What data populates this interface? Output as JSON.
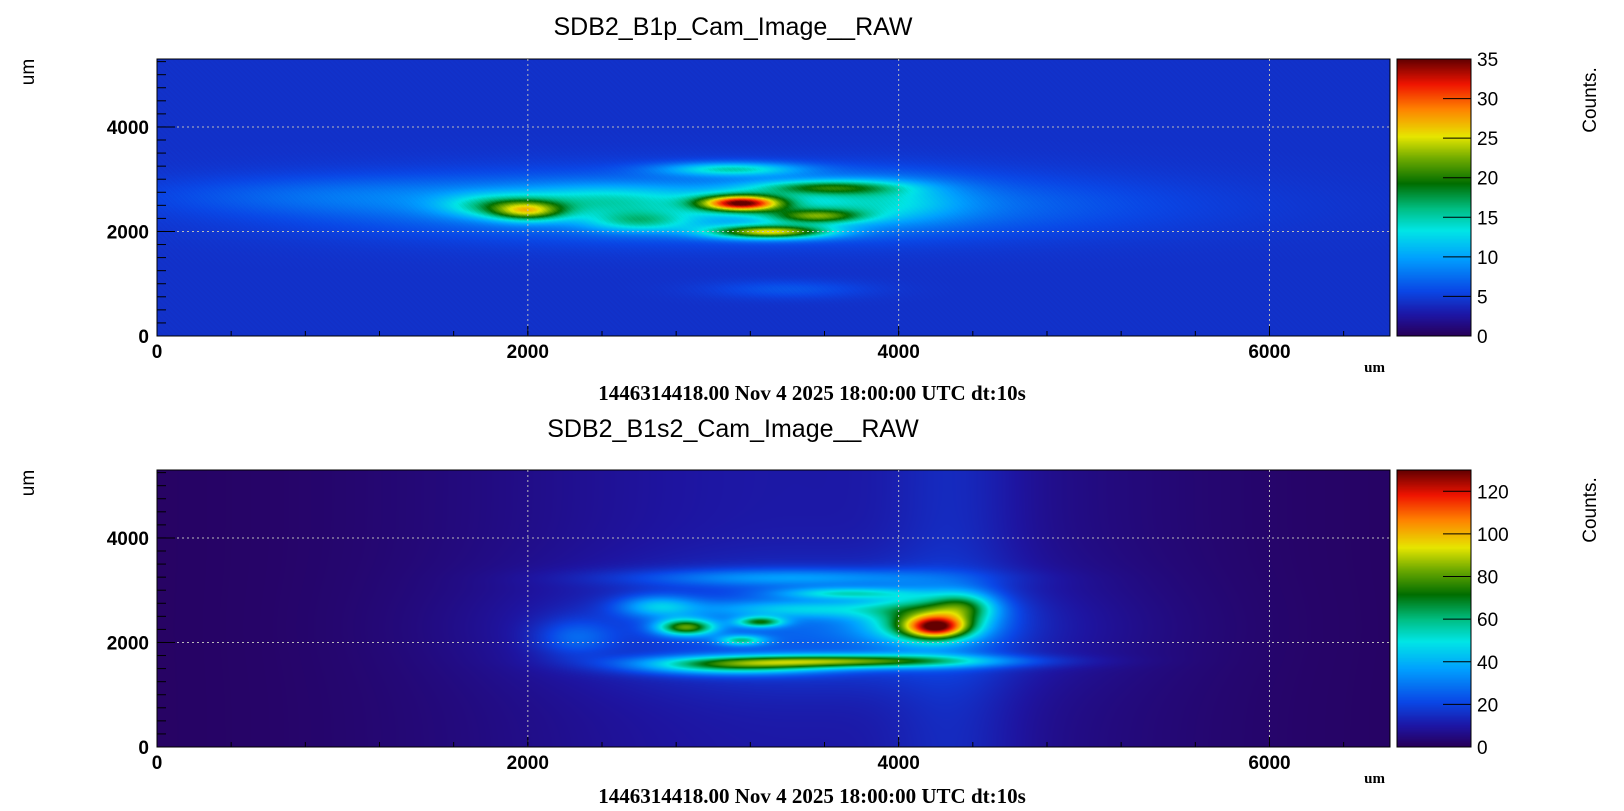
{
  "chart_data": [
    {
      "type": "heatmap",
      "title": "SDB2_B1p_Cam_Image__RAW",
      "xlabel": "um",
      "ylabel": "um",
      "colorbar_label": "Counts.",
      "xlim": [
        0,
        6650
      ],
      "ylim": [
        0,
        5300
      ],
      "x_ticks": [
        "0",
        "2000",
        "4000",
        "6000"
      ],
      "y_ticks": [
        "0",
        "2000",
        "4000"
      ],
      "zlim": [
        0,
        35
      ],
      "z_ticks": [
        "0",
        "5",
        "10",
        "15",
        "20",
        "25",
        "30",
        "35"
      ],
      "background_level": 4,
      "grid": true,
      "footer": "1446314418.00 Nov 4 2025 18:00:00 UTC dt:10s",
      "spots": [
        {
          "x": 3000,
          "y": 2500,
          "sx": 1350,
          "sy": 420,
          "value": 6
        },
        {
          "x": 1000,
          "y": 2700,
          "sx": 700,
          "sy": 250,
          "value": 2
        },
        {
          "x": 2000,
          "y": 2400,
          "sx": 140,
          "sy": 130,
          "value": 13
        },
        {
          "x": 1800,
          "y": 2500,
          "sx": 200,
          "sy": 160,
          "value": 6
        },
        {
          "x": 3150,
          "y": 2550,
          "sx": 160,
          "sy": 110,
          "value": 25
        },
        {
          "x": 3300,
          "y": 2000,
          "sx": 230,
          "sy": 90,
          "value": 18
        },
        {
          "x": 3550,
          "y": 2300,
          "sx": 180,
          "sy": 100,
          "value": 12
        },
        {
          "x": 3600,
          "y": 2850,
          "sx": 280,
          "sy": 100,
          "value": 10
        },
        {
          "x": 3100,
          "y": 3200,
          "sx": 260,
          "sy": 90,
          "value": 9
        },
        {
          "x": 2600,
          "y": 2200,
          "sx": 200,
          "sy": 140,
          "value": 7
        },
        {
          "x": 2400,
          "y": 2600,
          "sx": 350,
          "sy": 200,
          "value": 5
        },
        {
          "x": 3900,
          "y": 2600,
          "sx": 300,
          "sy": 300,
          "value": 5
        },
        {
          "x": 3400,
          "y": 900,
          "sx": 300,
          "sy": 120,
          "value": 2
        }
      ]
    },
    {
      "type": "heatmap",
      "title": "SDB2_B1s2_Cam_Image__RAW",
      "xlabel": "um",
      "ylabel": "um",
      "colorbar_label": "Counts.",
      "xlim": [
        0,
        6650
      ],
      "ylim": [
        0,
        5300
      ],
      "x_ticks": [
        "0",
        "2000",
        "4000",
        "6000"
      ],
      "y_ticks": [
        "0",
        "2000",
        "4000"
      ],
      "zlim": [
        0,
        130
      ],
      "z_ticks": [
        "0",
        "20",
        "40",
        "60",
        "80",
        "100",
        "120"
      ],
      "background_level": 1,
      "grid": true,
      "footer": "1446314418.00 Nov 4 2025 18:00:00 UTC dt:10s",
      "bands": [
        {
          "x": 3400,
          "sx": 1300,
          "value": 9
        },
        {
          "x": 4300,
          "sx": 250,
          "value": 6
        }
      ],
      "spots": [
        {
          "x": 3500,
          "y": 2300,
          "sx": 900,
          "sy": 700,
          "value": 16
        },
        {
          "x": 3700,
          "y": 1650,
          "sx": 550,
          "sy": 90,
          "value": 60
        },
        {
          "x": 3100,
          "y": 1550,
          "sx": 350,
          "sy": 110,
          "value": 40
        },
        {
          "x": 4200,
          "y": 2300,
          "sx": 120,
          "sy": 150,
          "value": 70
        },
        {
          "x": 4150,
          "y": 2450,
          "sx": 230,
          "sy": 330,
          "value": 45
        },
        {
          "x": 4350,
          "y": 2700,
          "sx": 120,
          "sy": 200,
          "value": 30
        },
        {
          "x": 2850,
          "y": 2300,
          "sx": 110,
          "sy": 110,
          "value": 60
        },
        {
          "x": 3250,
          "y": 2400,
          "sx": 90,
          "sy": 70,
          "value": 45
        },
        {
          "x": 3150,
          "y": 2050,
          "sx": 90,
          "sy": 70,
          "value": 35
        },
        {
          "x": 3700,
          "y": 2950,
          "sx": 250,
          "sy": 80,
          "value": 30
        },
        {
          "x": 3400,
          "y": 3250,
          "sx": 600,
          "sy": 120,
          "value": 20
        },
        {
          "x": 2700,
          "y": 2700,
          "sx": 150,
          "sy": 150,
          "value": 25
        },
        {
          "x": 3500,
          "y": 2650,
          "sx": 400,
          "sy": 120,
          "value": 22
        },
        {
          "x": 2250,
          "y": 2100,
          "sx": 150,
          "sy": 250,
          "value": 14
        }
      ]
    }
  ]
}
